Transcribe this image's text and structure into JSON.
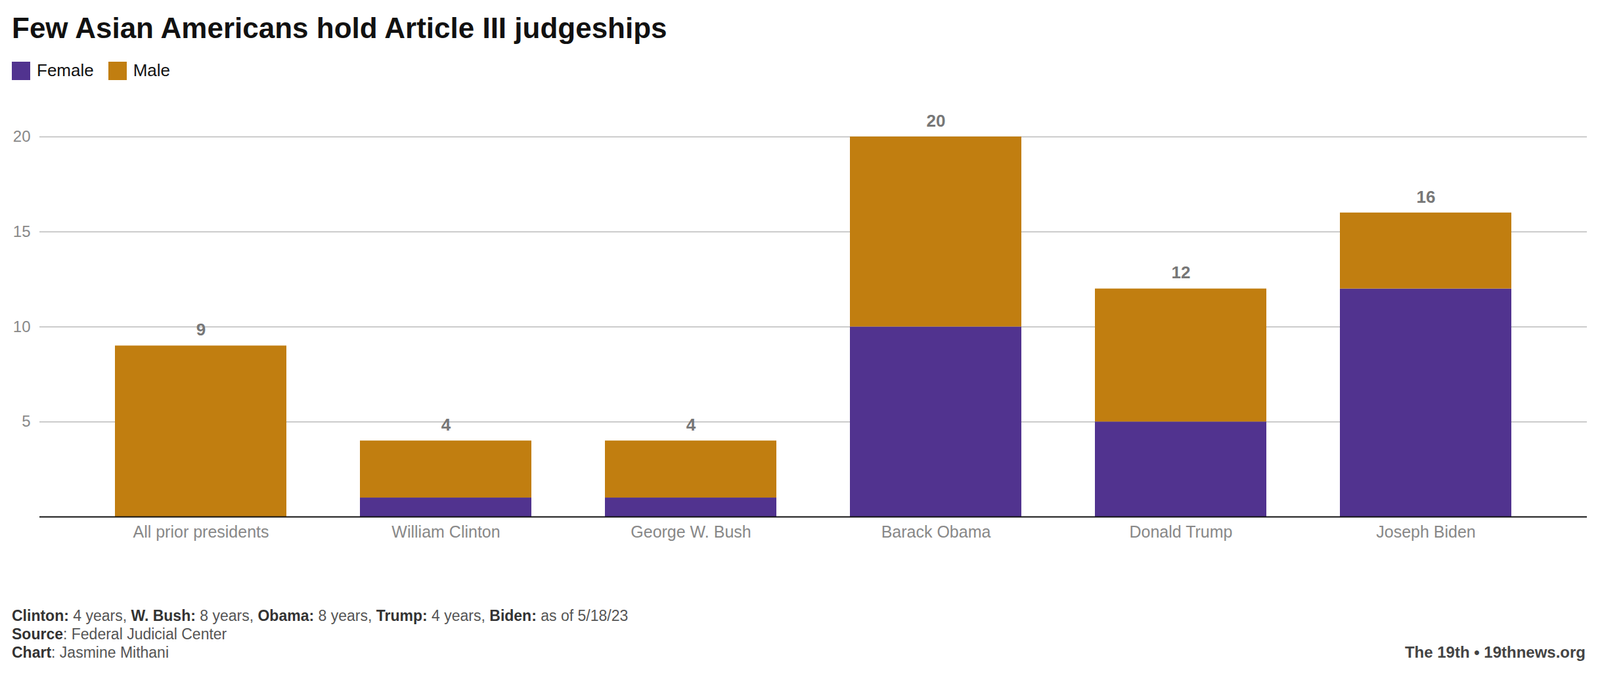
{
  "chart_data": {
    "type": "bar",
    "title": "Few Asian Americans hold Article III judgeships",
    "categories": [
      "All prior presidents",
      "William Clinton",
      "George W. Bush",
      "Barack Obama",
      "Donald Trump",
      "Joseph Biden"
    ],
    "series": [
      {
        "name": "Female",
        "color": "#51338f",
        "values": [
          0,
          1,
          1,
          10,
          5,
          12
        ]
      },
      {
        "name": "Male",
        "color": "#c17e10",
        "values": [
          9,
          3,
          3,
          10,
          7,
          4
        ]
      }
    ],
    "totals": [
      9,
      4,
      4,
      20,
      12,
      16
    ],
    "stacked": true,
    "ylim": [
      0,
      20
    ],
    "yticks": [
      5,
      10,
      15,
      20
    ],
    "grid": true,
    "legend": "top-left",
    "notes": [
      [
        {
          "bold": "Clinton:",
          "text": " 4 years, "
        },
        {
          "bold": "W. Bush:",
          "text": " 8 years, "
        },
        {
          "bold": "Obama:",
          "text": " 8 years, "
        },
        {
          "bold": "Trump:",
          "text": " 4 years, "
        },
        {
          "bold": "Biden:",
          "text": " as of 5/18/23"
        }
      ],
      [
        {
          "bold": "Source",
          "text": ": Federal Judicial Center"
        }
      ],
      [
        {
          "bold": "Chart",
          "text": ": Jasmine Mithani"
        }
      ]
    ],
    "credit": "The 19th • 19thnews.org"
  }
}
